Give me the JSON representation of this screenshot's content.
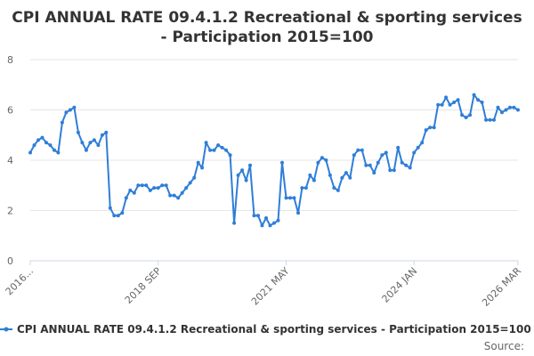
{
  "chart_data": {
    "type": "line",
    "title_lines": [
      "CPI ANNUAL RATE 09.4.1.2 Recreational & sporting services",
      "- Participation 2015=100"
    ],
    "xlabel": "",
    "ylabel": "",
    "ylim": [
      0,
      8
    ],
    "yticks": [
      0,
      2,
      4,
      6,
      8
    ],
    "grid": true,
    "legend_position": "bottom",
    "x_tick_labels": [
      {
        "index": 0,
        "label": "2016..."
      },
      {
        "index": 32,
        "label": "2018 SEP"
      },
      {
        "index": 64,
        "label": "2021 MAY"
      },
      {
        "index": 96,
        "label": "2024 JAN"
      },
      {
        "index": 122,
        "label": "2026 MAR"
      }
    ],
    "series": [
      {
        "name": "CPI ANNUAL RATE 09.4.1.2 Recreational & sporting services - Participation 2015=100",
        "color": "#2f7ed8",
        "values": [
          4.3,
          4.6,
          4.8,
          4.9,
          4.7,
          4.6,
          4.4,
          4.3,
          5.5,
          5.9,
          6.0,
          6.1,
          5.1,
          4.7,
          4.4,
          4.7,
          4.8,
          4.6,
          5.0,
          5.1,
          2.1,
          1.8,
          1.8,
          1.9,
          2.5,
          2.8,
          2.7,
          3.0,
          3.0,
          3.0,
          2.8,
          2.9,
          2.9,
          3.0,
          3.0,
          2.6,
          2.6,
          2.5,
          2.7,
          2.9,
          3.1,
          3.3,
          3.9,
          3.7,
          4.7,
          4.4,
          4.4,
          4.6,
          4.5,
          4.4,
          4.2,
          1.5,
          3.4,
          3.6,
          3.2,
          3.8,
          1.8,
          1.8,
          1.4,
          1.7,
          1.4,
          1.5,
          1.6,
          3.9,
          2.5,
          2.5,
          2.5,
          1.9,
          2.9,
          2.9,
          3.4,
          3.2,
          3.9,
          4.1,
          4.0,
          3.4,
          2.9,
          2.8,
          3.3,
          3.5,
          3.3,
          4.2,
          4.4,
          4.4,
          3.8,
          3.8,
          3.5,
          3.9,
          4.2,
          4.3,
          3.6,
          3.6,
          4.5,
          3.9,
          3.8,
          3.7,
          4.3,
          4.5,
          4.7,
          5.2,
          5.3,
          5.3,
          6.2,
          6.2,
          6.5,
          6.2,
          6.3,
          6.4,
          5.8,
          5.7,
          5.8,
          6.6,
          6.4,
          6.3,
          5.6,
          5.6,
          5.6,
          6.1,
          5.9,
          6.0,
          6.1,
          6.1,
          6.0
        ]
      }
    ]
  },
  "credits": "Source:"
}
